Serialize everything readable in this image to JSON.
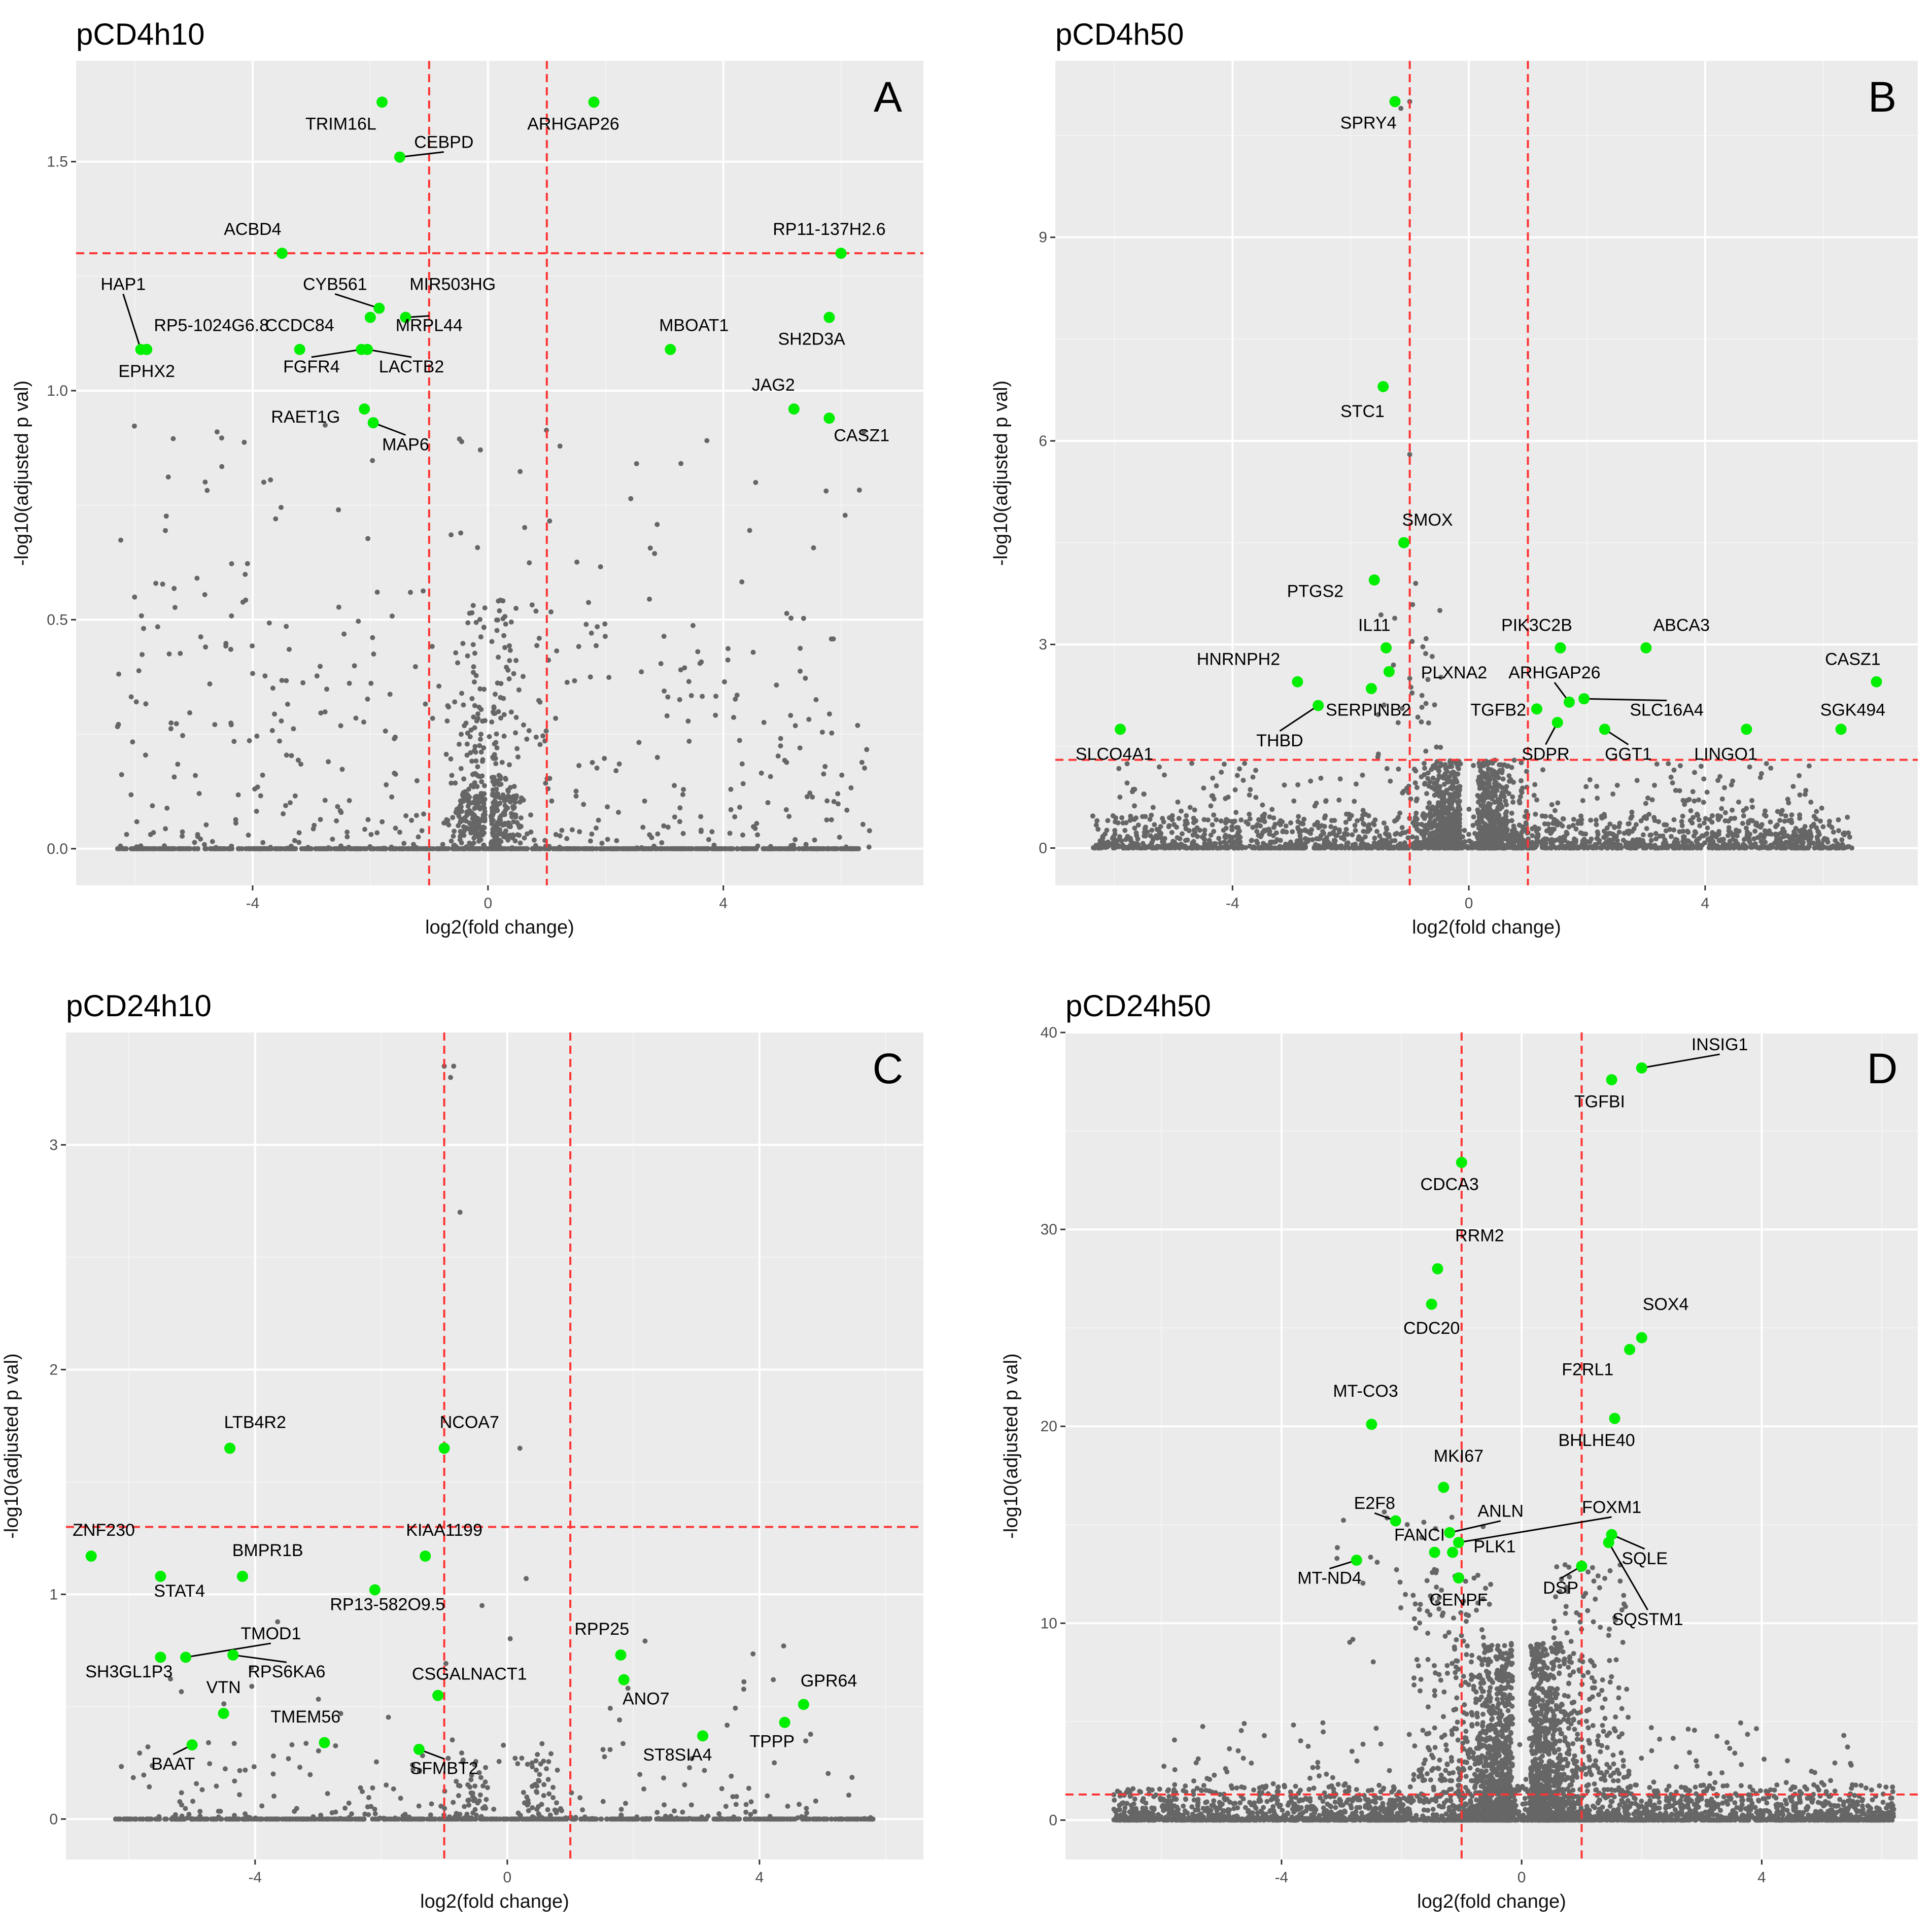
{
  "colors": {
    "panel_bg": "#ebebeb",
    "grid_major": "#ffffff",
    "grid_minor": "#f4f4f4",
    "point_grey": "#666666",
    "point_highlight": "#00ee00",
    "threshold_line": "#ff3333",
    "text": "#000000",
    "tick_text": "#4d4d4d"
  },
  "chart_data": [
    {
      "type": "scatter",
      "id": "A",
      "title": "pCD4h10",
      "panel_letter": "A",
      "xlabel": "log2(fold change)",
      "ylabel": "-log10(adjusted p val)",
      "xlim": [
        -7.0,
        7.4
      ],
      "ylim": [
        -0.08,
        1.72
      ],
      "xticks": [
        -4,
        0,
        4
      ],
      "yticks": [
        0.0,
        0.5,
        1.0,
        1.5
      ],
      "ytick_labels": [
        "0.0",
        "0.5",
        "1.0",
        "1.5"
      ],
      "vlines": [
        -1.0,
        1.0
      ],
      "hline": 1.3,
      "seed": 11,
      "background_profile": "panelA",
      "genes": [
        {
          "name": "TRIM16L",
          "x": -1.8,
          "y": 1.63,
          "lx": -2.5,
          "ly": 1.57
        },
        {
          "name": "ARHGAP26",
          "x": 1.8,
          "y": 1.63,
          "lx": 1.45,
          "ly": 1.57
        },
        {
          "name": "CEBPD",
          "x": -1.5,
          "y": 1.51,
          "lx": -0.75,
          "ly": 1.53,
          "line": true
        },
        {
          "name": "ACBD4",
          "x": -3.5,
          "y": 1.3,
          "lx": -4.0,
          "ly": 1.34
        },
        {
          "name": "RP11-137H2.6",
          "x": 6.0,
          "y": 1.3,
          "lx": 5.8,
          "ly": 1.34
        },
        {
          "name": "HAP1",
          "x": -5.9,
          "y": 1.09,
          "lx": -6.2,
          "ly": 1.22,
          "line": true
        },
        {
          "name": "EPHX2",
          "x": -5.8,
          "y": 1.09,
          "lx": -5.8,
          "ly": 1.03
        },
        {
          "name": "RP5-1024G6.8",
          "x": -5.8,
          "y": 1.09,
          "lx": -4.7,
          "ly": 1.13
        },
        {
          "name": "CYB561",
          "x": -1.85,
          "y": 1.18,
          "lx": -2.6,
          "ly": 1.22,
          "line": true
        },
        {
          "name": "MIR503HG",
          "x": -2.0,
          "y": 1.16,
          "lx": -0.6,
          "ly": 1.22
        },
        {
          "name": "CCDC84",
          "x": -3.2,
          "y": 1.09,
          "lx": -3.2,
          "ly": 1.13
        },
        {
          "name": "MRPL44",
          "x": -1.4,
          "y": 1.16,
          "lx": -1.0,
          "ly": 1.13,
          "line": true
        },
        {
          "name": "FGFR4",
          "x": -2.15,
          "y": 1.09,
          "lx": -3.0,
          "ly": 1.04,
          "line": true
        },
        {
          "name": "LACTB2",
          "x": -2.05,
          "y": 1.09,
          "lx": -1.3,
          "ly": 1.04,
          "line": true
        },
        {
          "name": "MBOAT1",
          "x": 3.1,
          "y": 1.09,
          "lx": 3.5,
          "ly": 1.13
        },
        {
          "name": "SH2D3A",
          "x": 5.8,
          "y": 1.16,
          "lx": 5.5,
          "ly": 1.1
        },
        {
          "name": "JAG2",
          "x": 5.2,
          "y": 0.96,
          "lx": 4.85,
          "ly": 1.0
        },
        {
          "name": "CASZ1",
          "x": 5.8,
          "y": 0.94,
          "lx": 6.35,
          "ly": 0.89
        },
        {
          "name": "RAET1G",
          "x": -2.1,
          "y": 0.96,
          "lx": -3.1,
          "ly": 0.93
        },
        {
          "name": "MAP6",
          "x": -1.95,
          "y": 0.93,
          "lx": -1.4,
          "ly": 0.87,
          "line": true
        }
      ]
    },
    {
      "type": "scatter",
      "id": "B",
      "title": "pCD4h50",
      "panel_letter": "B",
      "xlabel": "log2(fold change)",
      "ylabel": "-log10(adjusted p val)",
      "xlim": [
        -7.0,
        7.6
      ],
      "ylim": [
        -0.55,
        11.6
      ],
      "xticks": [
        -4,
        0,
        4
      ],
      "yticks": [
        0,
        3,
        6,
        9
      ],
      "ytick_labels": [
        "0",
        "3",
        "6",
        "9"
      ],
      "vlines": [
        -1.0,
        1.0
      ],
      "hline": 1.3,
      "seed": 29,
      "background_profile": "panelB",
      "genes": [
        {
          "name": "SPRY4",
          "x": -1.25,
          "y": 11.0,
          "lx": -1.7,
          "ly": 10.6
        },
        {
          "name": "STC1",
          "x": -1.45,
          "y": 6.8,
          "lx": -1.8,
          "ly": 6.35
        },
        {
          "name": "SMOX",
          "x": -1.1,
          "y": 4.5,
          "lx": -0.7,
          "ly": 4.75
        },
        {
          "name": "PTGS2",
          "x": -1.6,
          "y": 3.95,
          "lx": -2.6,
          "ly": 3.7
        },
        {
          "name": "IL11",
          "x": -1.4,
          "y": 2.95,
          "lx": -1.6,
          "ly": 3.2
        },
        {
          "name": "PIK3C2B",
          "x": 1.55,
          "y": 2.95,
          "lx": 1.15,
          "ly": 3.2
        },
        {
          "name": "ABCA3",
          "x": 3.0,
          "y": 2.95,
          "lx": 3.6,
          "ly": 3.2
        },
        {
          "name": "HNRNPH2",
          "x": -2.9,
          "y": 2.45,
          "lx": -3.9,
          "ly": 2.7
        },
        {
          "name": "PLXNA2",
          "x": -1.35,
          "y": 2.6,
          "lx": -0.25,
          "ly": 2.5
        },
        {
          "name": "ARHGAP26",
          "x": 1.7,
          "y": 2.15,
          "lx": 1.45,
          "ly": 2.5,
          "line": true
        },
        {
          "name": "CASZ1",
          "x": 6.9,
          "y": 2.45,
          "lx": 6.5,
          "ly": 2.7
        },
        {
          "name": "SERPINB2",
          "x": -1.65,
          "y": 2.35,
          "lx": -1.7,
          "ly": 1.95
        },
        {
          "name": "TGFB2",
          "x": 1.15,
          "y": 2.05,
          "lx": 0.5,
          "ly": 1.95
        },
        {
          "name": "SLC16A4",
          "x": 1.95,
          "y": 2.2,
          "lx": 3.35,
          "ly": 1.95,
          "line": true
        },
        {
          "name": "SGK494",
          "x": 6.3,
          "y": 1.75,
          "lx": 6.5,
          "ly": 1.95
        },
        {
          "name": "THBD",
          "x": -2.55,
          "y": 2.1,
          "lx": -3.2,
          "ly": 1.5,
          "line": true
        },
        {
          "name": "SLCO4A1",
          "x": -5.9,
          "y": 1.75,
          "lx": -6.0,
          "ly": 1.3
        },
        {
          "name": "SDPR",
          "x": 1.5,
          "y": 1.85,
          "lx": 1.3,
          "ly": 1.3,
          "line": true
        },
        {
          "name": "GGT1",
          "x": 2.3,
          "y": 1.75,
          "lx": 2.7,
          "ly": 1.3,
          "line": true
        },
        {
          "name": "LINGO1",
          "x": 4.7,
          "y": 1.75,
          "lx": 4.35,
          "ly": 1.3
        }
      ]
    },
    {
      "type": "scatter",
      "id": "C",
      "title": "pCD24h10",
      "panel_letter": "C",
      "xlabel": "log2(fold change)",
      "ylabel": "-log10(adjusted p val)",
      "xlim": [
        -7.0,
        6.6
      ],
      "ylim": [
        -0.18,
        3.5
      ],
      "xticks": [
        -4,
        0,
        4
      ],
      "yticks": [
        0,
        1,
        2,
        3
      ],
      "ytick_labels": [
        "0",
        "1",
        "2",
        "3"
      ],
      "vlines": [
        -1.0,
        1.0
      ],
      "hline": 1.3,
      "seed": 53,
      "background_profile": "panelC",
      "genes": [
        {
          "name": "LTB4R2",
          "x": -4.4,
          "y": 1.65,
          "lx": -4.0,
          "ly": 1.74
        },
        {
          "name": "NCOA7",
          "x": -1.0,
          "y": 1.65,
          "lx": -0.6,
          "ly": 1.74
        },
        {
          "name": "ZNF230",
          "x": -6.6,
          "y": 1.17,
          "lx": -6.4,
          "ly": 1.26
        },
        {
          "name": "KIAA1199",
          "x": -1.3,
          "y": 1.17,
          "lx": -1.0,
          "ly": 1.26
        },
        {
          "name": "STAT4",
          "x": -5.5,
          "y": 1.08,
          "lx": -5.2,
          "ly": 0.99
        },
        {
          "name": "BMPR1B",
          "x": -4.2,
          "y": 1.08,
          "lx": -3.8,
          "ly": 1.17
        },
        {
          "name": "RP13-582O9.5",
          "x": -2.1,
          "y": 1.02,
          "lx": -1.9,
          "ly": 0.93
        },
        {
          "name": "TMOD1",
          "x": -5.1,
          "y": 0.72,
          "lx": -3.75,
          "ly": 0.8,
          "line": true
        },
        {
          "name": "SH3GL1P3",
          "x": -5.5,
          "y": 0.72,
          "lx": -6.0,
          "ly": 0.63
        },
        {
          "name": "RPS6KA6",
          "x": -4.35,
          "y": 0.73,
          "lx": -3.5,
          "ly": 0.63,
          "line": true
        },
        {
          "name": "RPP25",
          "x": 1.8,
          "y": 0.73,
          "lx": 1.5,
          "ly": 0.82
        },
        {
          "name": "CSGALNACT1",
          "x": -1.1,
          "y": 0.55,
          "lx": -0.6,
          "ly": 0.62
        },
        {
          "name": "GPR64",
          "x": 4.7,
          "y": 0.51,
          "lx": 5.1,
          "ly": 0.59
        },
        {
          "name": "ANO7",
          "x": 1.85,
          "y": 0.62,
          "lx": 2.2,
          "ly": 0.51
        },
        {
          "name": "VTN",
          "x": -4.5,
          "y": 0.47,
          "lx": -4.5,
          "ly": 0.56
        },
        {
          "name": "TPPP",
          "x": 4.4,
          "y": 0.43,
          "lx": 4.2,
          "ly": 0.32
        },
        {
          "name": "ST8SIA4",
          "x": 3.1,
          "y": 0.37,
          "lx": 2.7,
          "ly": 0.26
        },
        {
          "name": "TMEM56",
          "x": -2.9,
          "y": 0.34,
          "lx": -3.2,
          "ly": 0.43
        },
        {
          "name": "BAAT",
          "x": -5.0,
          "y": 0.33,
          "lx": -5.3,
          "ly": 0.22,
          "line": true
        },
        {
          "name": "SFMBT2",
          "x": -1.4,
          "y": 0.31,
          "lx": -1.0,
          "ly": 0.2,
          "line": true
        }
      ]
    },
    {
      "type": "scatter",
      "id": "D",
      "title": "pCD24h50",
      "panel_letter": "D",
      "xlabel": "log2(fold change)",
      "ylabel": "-log10(adjusted p val)",
      "xlim": [
        -7.6,
        6.6
      ],
      "ylim": [
        -2.0,
        40.0
      ],
      "xticks": [
        -4,
        0,
        4
      ],
      "yticks": [
        0,
        10,
        20,
        30,
        40
      ],
      "ytick_labels": [
        "0",
        "10",
        "20",
        "30",
        "40"
      ],
      "vlines": [
        -1.0,
        1.0
      ],
      "hline": 1.3,
      "seed": 97,
      "background_profile": "panelD",
      "genes": [
        {
          "name": "INSIG1",
          "x": 2.0,
          "y": 38.2,
          "lx": 3.3,
          "ly": 39.1,
          "line": true
        },
        {
          "name": "TGFBI",
          "x": 1.5,
          "y": 37.6,
          "lx": 1.3,
          "ly": 36.2
        },
        {
          "name": "CDCA3",
          "x": -1.0,
          "y": 33.4,
          "lx": -1.2,
          "ly": 32.0
        },
        {
          "name": "RRM2",
          "x": -1.4,
          "y": 28.0,
          "lx": -0.7,
          "ly": 29.4
        },
        {
          "name": "CDC20",
          "x": -1.5,
          "y": 26.2,
          "lx": -1.5,
          "ly": 24.7
        },
        {
          "name": "SOX4",
          "x": 2.0,
          "y": 24.5,
          "lx": 2.4,
          "ly": 25.9
        },
        {
          "name": "F2RL1",
          "x": 1.8,
          "y": 23.9,
          "lx": 1.1,
          "ly": 22.6
        },
        {
          "name": "MT-CO3",
          "x": -2.5,
          "y": 20.1,
          "lx": -2.6,
          "ly": 21.5
        },
        {
          "name": "BHLHE40",
          "x": 1.55,
          "y": 20.4,
          "lx": 1.25,
          "ly": 19.0
        },
        {
          "name": "MKI67",
          "x": -1.3,
          "y": 16.9,
          "lx": -1.05,
          "ly": 18.2
        },
        {
          "name": "E2F8",
          "x": -2.1,
          "y": 15.2,
          "lx": -2.45,
          "ly": 15.8,
          "line": true
        },
        {
          "name": "FOXM1",
          "x": -1.05,
          "y": 14.1,
          "lx": 1.5,
          "ly": 15.6,
          "line": true
        },
        {
          "name": "ANLN",
          "x": -1.2,
          "y": 14.6,
          "lx": -0.35,
          "ly": 15.4,
          "line": true
        },
        {
          "name": "FANCI",
          "x": -1.45,
          "y": 13.6,
          "lx": -1.7,
          "ly": 14.2
        },
        {
          "name": "PLK1",
          "x": -1.15,
          "y": 13.6,
          "lx": -0.45,
          "ly": 13.6
        },
        {
          "name": "SQLE",
          "x": 1.5,
          "y": 14.5,
          "lx": 2.05,
          "ly": 13.0,
          "line": true
        },
        {
          "name": "MT-ND4",
          "x": -2.75,
          "y": 13.2,
          "lx": -3.2,
          "ly": 12.0,
          "line": true
        },
        {
          "name": "DSP",
          "x": 1.0,
          "y": 12.9,
          "lx": 0.65,
          "ly": 11.5,
          "line": true
        },
        {
          "name": "CENPF",
          "x": -1.05,
          "y": 12.3,
          "lx": -1.05,
          "ly": 10.9
        },
        {
          "name": "SQSTM1",
          "x": 1.45,
          "y": 14.1,
          "lx": 2.1,
          "ly": 9.9,
          "line": true
        }
      ]
    }
  ]
}
